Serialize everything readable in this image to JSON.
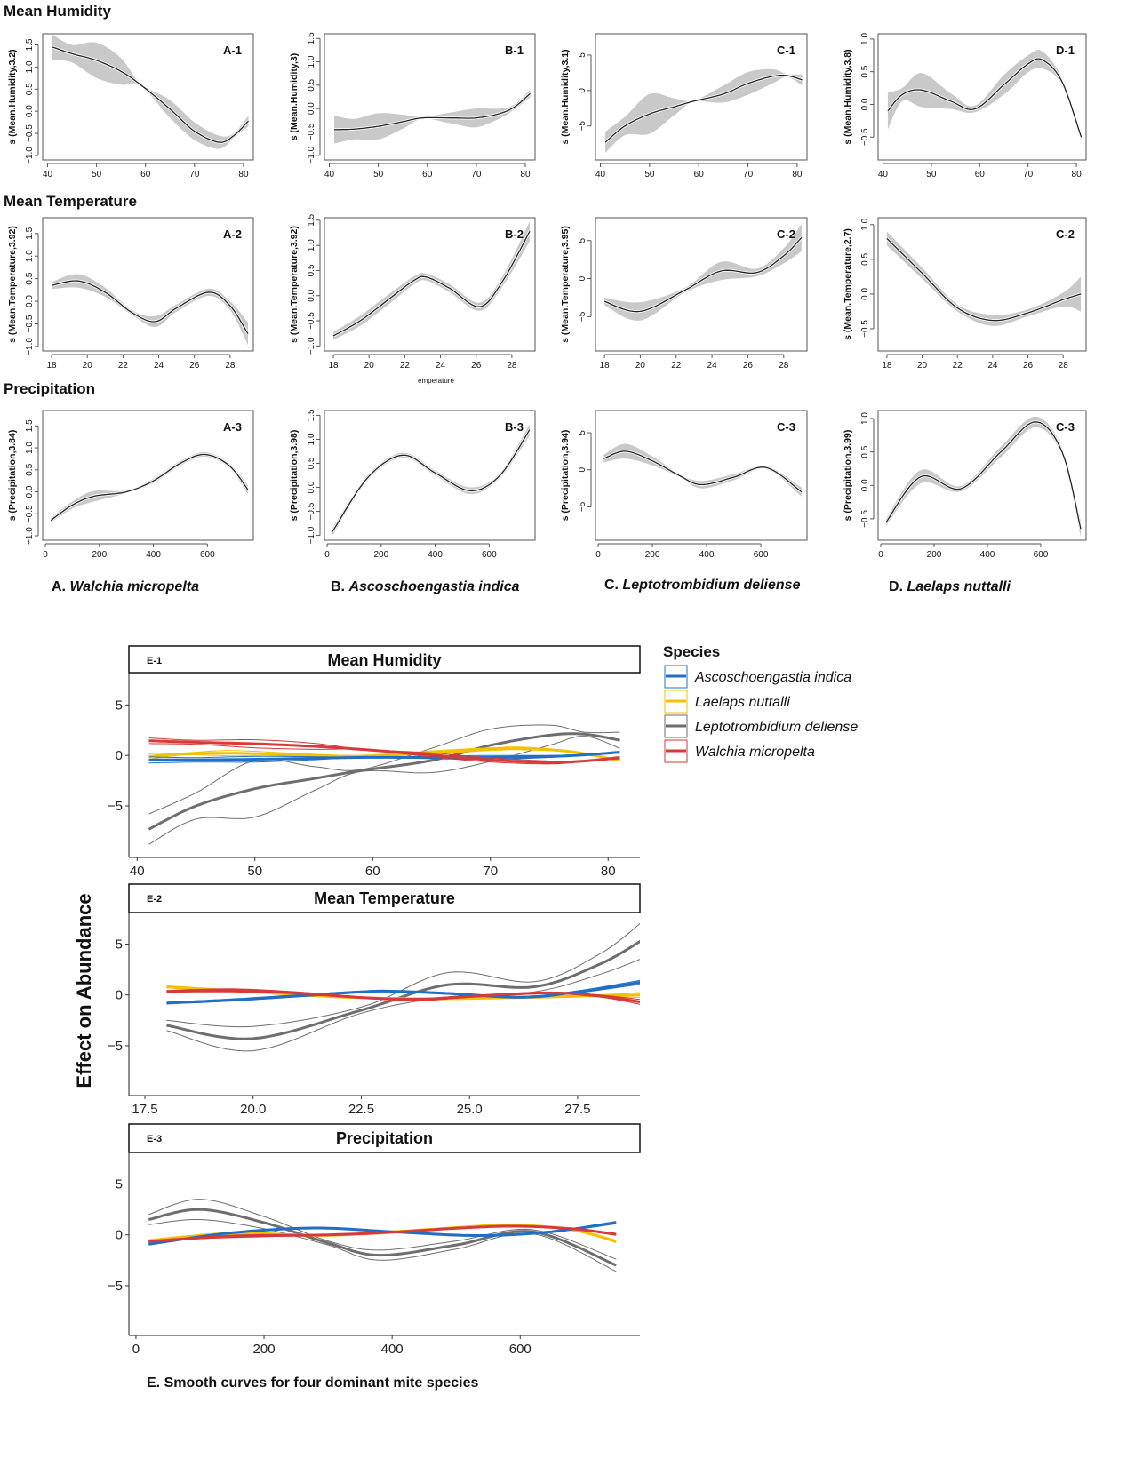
{
  "figure": {
    "row_titles": [
      "Mean Humidity",
      "Mean Temperature",
      "Precipitation"
    ],
    "stray_label": "emperature",
    "species_captions": [
      {
        "prefix": "A. ",
        "name": "Walchia micropelta"
      },
      {
        "prefix": "B. ",
        "name": "Ascoschoengastia indica"
      },
      {
        "prefix": "C. ",
        "name": "Leptotrombidium deliense"
      },
      {
        "prefix": "D. ",
        "name": "Laelaps nuttalli"
      }
    ],
    "bottom_caption": "E. Smooth curves for four dominant mite species"
  },
  "chart_data": {
    "type": "line",
    "variables": {
      "humidity": {
        "xlim": [
          39,
          82
        ],
        "xticks": [
          40,
          50,
          60,
          70,
          80
        ]
      },
      "temperature": {
        "xlim": [
          17.5,
          29.3
        ],
        "xticks": [
          18,
          20,
          22,
          24,
          26,
          28
        ]
      },
      "precipitation": {
        "xlim": [
          -10,
          770
        ],
        "xticks": [
          0,
          200,
          400,
          600
        ]
      }
    },
    "panels": [
      {
        "id": "A-1",
        "species": "A",
        "var": "humidity",
        "ylabel": "s (Mean.Humidity,3.2)",
        "ylim": [
          -1.1,
          1.75
        ],
        "yticks": [
          "-1.0",
          "-0.5",
          "0.0",
          "0.5",
          "1.0",
          "1.5"
        ],
        "x": [
          41,
          45,
          50,
          55,
          59,
          65,
          70,
          75,
          78,
          81
        ],
        "y": [
          1.45,
          1.3,
          1.15,
          0.9,
          0.6,
          0.05,
          -0.45,
          -0.7,
          -0.55,
          -0.22
        ],
        "se": [
          0.28,
          0.2,
          0.4,
          0.3,
          0.02,
          0.2,
          0.2,
          0.15,
          0.05,
          0.12
        ]
      },
      {
        "id": "B-1",
        "species": "B",
        "var": "humidity",
        "ylabel": "s (Mean.Humidity,3)",
        "ylim": [
          -1.1,
          1.6
        ],
        "yticks": [
          "-1.0",
          "-0.5",
          "0.0",
          "0.5",
          "1.0",
          "1.5"
        ],
        "x": [
          41,
          45,
          50,
          55,
          59,
          65,
          70,
          75,
          78,
          81
        ],
        "y": [
          -0.45,
          -0.44,
          -0.38,
          -0.28,
          -0.2,
          -0.2,
          -0.2,
          -0.1,
          0.05,
          0.32
        ],
        "se": [
          0.3,
          0.22,
          0.28,
          0.15,
          0.02,
          0.12,
          0.2,
          0.1,
          0.05,
          0.08
        ]
      },
      {
        "id": "C-1",
        "species": "C",
        "var": "humidity",
        "ylabel": "s (Mean.Humidity,3.1)",
        "ylim": [
          -9.8,
          8
        ],
        "yticks": [
          "-5",
          "0",
          "5"
        ],
        "x": [
          41,
          45,
          50,
          55,
          59,
          65,
          70,
          75,
          78,
          81
        ],
        "y": [
          -7.3,
          -5,
          -3.3,
          -2.3,
          -1.5,
          -0.5,
          1,
          2,
          2.1,
          1.5
        ],
        "se": [
          1.5,
          1.3,
          2.8,
          1.2,
          0.1,
          1.2,
          1.6,
          1,
          0.2,
          0.8
        ]
      },
      {
        "id": "D-1",
        "species": "D",
        "var": "humidity",
        "ylabel": "s (Mean.Humidity,3.8)",
        "ylim": [
          -0.85,
          1.08
        ],
        "yticks": [
          "-0.5",
          "0.0",
          "0.5",
          "1.0"
        ],
        "x": [
          41,
          44,
          48,
          54,
          59,
          65,
          70,
          73,
          77,
          81
        ],
        "y": [
          -0.1,
          0.15,
          0.22,
          0.05,
          -0.07,
          0.3,
          0.62,
          0.68,
          0.35,
          -0.5
        ],
        "se": [
          0.28,
          0.1,
          0.26,
          0.12,
          0.05,
          0.15,
          0.13,
          0.13,
          0.05,
          0.05
        ]
      },
      {
        "id": "A-2",
        "species": "A",
        "var": "temperature",
        "ylabel": "s (Mean.Temperature,3.92)",
        "ylim": [
          -1.1,
          1.85
        ],
        "yticks": [
          "-1.0",
          "-0.5",
          "0.0",
          "0.5",
          "1.0",
          "1.5"
        ],
        "x": [
          18,
          19.5,
          21,
          22.5,
          23.8,
          25,
          26.8,
          28,
          29
        ],
        "y": [
          0.35,
          0.45,
          0.2,
          -0.25,
          -0.45,
          -0.15,
          0.2,
          -0.1,
          -0.72
        ],
        "se": [
          0.08,
          0.15,
          0.1,
          0.05,
          0.12,
          0.08,
          0.08,
          0.1,
          0.25
        ]
      },
      {
        "id": "B-2",
        "species": "B",
        "var": "temperature",
        "ylabel": "s (Mean.Temperature,3.92)",
        "ylim": [
          -1.1,
          1.55
        ],
        "yticks": [
          "-1.0",
          "-0.5",
          "0.0",
          "0.5",
          "1.0",
          "1.5"
        ],
        "x": [
          18,
          19.5,
          21,
          22.5,
          23.2,
          24.5,
          26.2,
          27.5,
          29
        ],
        "y": [
          -0.8,
          -0.5,
          -0.1,
          0.3,
          0.37,
          0.15,
          -0.22,
          0.3,
          1.28
        ],
        "se": [
          0.08,
          0.1,
          0.1,
          0.08,
          0.07,
          0.08,
          0.08,
          0.1,
          0.2
        ]
      },
      {
        "id": "C-2",
        "species": "C",
        "var": "temperature",
        "ylabel": "s (Mean.Temperature,3.95)",
        "ylim": [
          -9.5,
          8
        ],
        "yticks": [
          "-5",
          "0",
          "5"
        ],
        "x": [
          18,
          20,
          22.5,
          24.5,
          26.5,
          28,
          29
        ],
        "y": [
          -3,
          -4.3,
          -1.5,
          1,
          0.8,
          3,
          5.4
        ],
        "se": [
          0.5,
          1.2,
          0.3,
          1.2,
          0.5,
          1,
          1.8
        ]
      },
      {
        "id": "C-2",
        "species": "D",
        "var": "temperature",
        "ylabel": "s (Mean.Temperature,2.7)",
        "ylim": [
          -0.82,
          1.1
        ],
        "yticks": [
          "-0.5",
          "0.0",
          "0.5",
          "1.0"
        ],
        "x": [
          18,
          20,
          22,
          24,
          26,
          28,
          29
        ],
        "y": [
          0.8,
          0.3,
          -0.2,
          -0.38,
          -0.27,
          -0.08,
          0
        ],
        "se": [
          0.1,
          0.08,
          0.05,
          0.08,
          0.05,
          0.1,
          0.25
        ]
      },
      {
        "id": "A-3",
        "species": "A",
        "var": "precipitation",
        "ylabel": "s (Precipitation,3.84)",
        "ylim": [
          -1.1,
          1.85
        ],
        "yticks": [
          "-1.0",
          "-0.5",
          "0.0",
          "0.5",
          "1.0",
          "1.5"
        ],
        "x": [
          20,
          100,
          180,
          300,
          400,
          500,
          590,
          680,
          750
        ],
        "y": [
          -0.65,
          -0.3,
          -0.1,
          0,
          0.25,
          0.65,
          0.85,
          0.6,
          0.05
        ],
        "se": [
          0.05,
          0.08,
          0.12,
          0.03,
          0.05,
          0.05,
          0.05,
          0.05,
          0.1
        ]
      },
      {
        "id": "B-3",
        "species": "B",
        "var": "precipitation",
        "ylabel": "s (Precipitation,3.98)",
        "ylim": [
          -1.1,
          1.6
        ],
        "yticks": [
          "-1.0",
          "-0.5",
          "0.0",
          "0.5",
          "1.0",
          "1.5"
        ],
        "x": [
          20,
          150,
          280,
          400,
          530,
          640,
          750
        ],
        "y": [
          -0.92,
          0.2,
          0.67,
          0.3,
          -0.07,
          0.25,
          1.2
        ],
        "se": [
          0.08,
          0.05,
          0.05,
          0.05,
          0.07,
          0.05,
          0.12
        ]
      },
      {
        "id": "C-3",
        "species": "C",
        "var": "precipitation",
        "ylabel": "s (Precipitation,3.94)",
        "ylim": [
          -9.5,
          8
        ],
        "yticks": [
          "-5",
          "0",
          "5"
        ],
        "x": [
          20,
          100,
          200,
          300,
          380,
          500,
          620,
          750
        ],
        "y": [
          1.5,
          2.5,
          1.2,
          -0.8,
          -2,
          -1,
          0.3,
          -3
        ],
        "se": [
          0.5,
          1,
          0.6,
          0.2,
          0.5,
          0.4,
          0.2,
          0.6
        ]
      },
      {
        "id": "C-3",
        "species": "D",
        "var": "precipitation",
        "ylabel": "s (Precipitation,3.99)",
        "ylim": [
          -0.82,
          1.12
        ],
        "yticks": [
          "-0.5",
          "0.0",
          "0.5",
          "1.0"
        ],
        "x": [
          20,
          150,
          300,
          450,
          580,
          680,
          750
        ],
        "y": [
          -0.55,
          0.13,
          -0.05,
          0.5,
          0.95,
          0.5,
          -0.65
        ],
        "se": [
          0.05,
          0.1,
          0.04,
          0.08,
          0.08,
          0.06,
          0.12
        ]
      }
    ],
    "combined": {
      "ylabel": "Effect on Abundance",
      "yticks": [
        "-5",
        "0",
        "5"
      ],
      "legend": {
        "title": "Species",
        "position": "right"
      },
      "species": [
        {
          "key": "B",
          "name": "Ascoschoengastia indica",
          "color": "#1f6fc6"
        },
        {
          "key": "D",
          "name": "Laelaps nuttalli",
          "color": "#f2c200"
        },
        {
          "key": "C",
          "name": "Leptotrombidium deliense",
          "color": "#6e6e6e"
        },
        {
          "key": "A",
          "name": "Walchia micropelta",
          "color": "#d63a3a"
        }
      ],
      "panels": [
        {
          "id": "E-1",
          "title": "Mean Humidity",
          "var": "humidity",
          "xlim": [
            39.3,
            82.7
          ],
          "ylim": [
            -10.1,
            8.2
          ],
          "xticks": [
            "40",
            "50",
            "60",
            "70",
            "80"
          ],
          "xvals": [
            40,
            50,
            60,
            70,
            80
          ]
        },
        {
          "id": "E-2",
          "title": "Mean Temperature",
          "var": "temperature",
          "xlim": [
            17.13,
            28.94
          ],
          "ylim": [
            -9.9,
            8.1
          ],
          "xticks": [
            "17.5",
            "20.0",
            "22.5",
            "25.0",
            "27.5"
          ],
          "xvals": [
            17.5,
            20,
            22.5,
            25,
            27.5
          ]
        },
        {
          "id": "E-3",
          "title": "Precipitation",
          "var": "precipitation",
          "xlim": [
            -11,
            787
          ],
          "ylim": [
            -9.9,
            8.1
          ],
          "xticks": [
            "0",
            "200",
            "400",
            "600"
          ],
          "xvals": [
            0,
            200,
            400,
            600
          ]
        }
      ]
    }
  }
}
